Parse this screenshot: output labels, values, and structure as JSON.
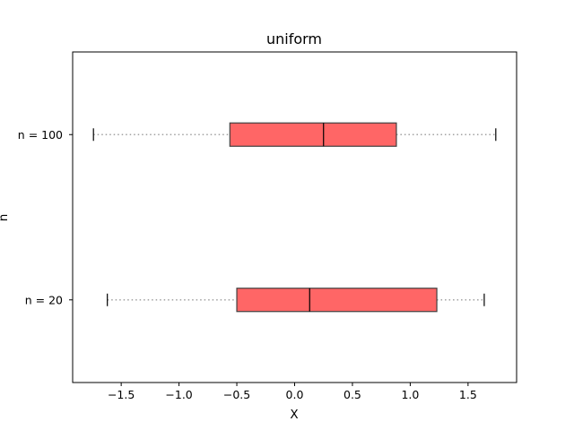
{
  "chart_data": {
    "type": "boxplot",
    "orientation": "horizontal",
    "title": "uniform",
    "xlabel": "X",
    "ylabel": "n",
    "xlim": [
      -1.92,
      1.92
    ],
    "xticks": [
      -1.5,
      -1.0,
      -0.5,
      0.0,
      0.5,
      1.0,
      1.5
    ],
    "xtick_labels": [
      "−1.5",
      "−1.0",
      "−0.5",
      "0.0",
      "0.5",
      "1.0",
      "1.5"
    ],
    "grid": false,
    "box_color": "#ff6666",
    "box_edge_color": "#404040",
    "whisker_color": "#a0a0a0",
    "categories": [
      "n = 20",
      "n = 100"
    ],
    "boxes": [
      {
        "label": "n = 20",
        "whislo": -1.62,
        "q1": -0.5,
        "median": 0.13,
        "q3": 1.23,
        "whishi": 1.64
      },
      {
        "label": "n = 100",
        "whislo": -1.74,
        "q1": -0.56,
        "median": 0.25,
        "q3": 0.88,
        "whishi": 1.74
      }
    ]
  }
}
